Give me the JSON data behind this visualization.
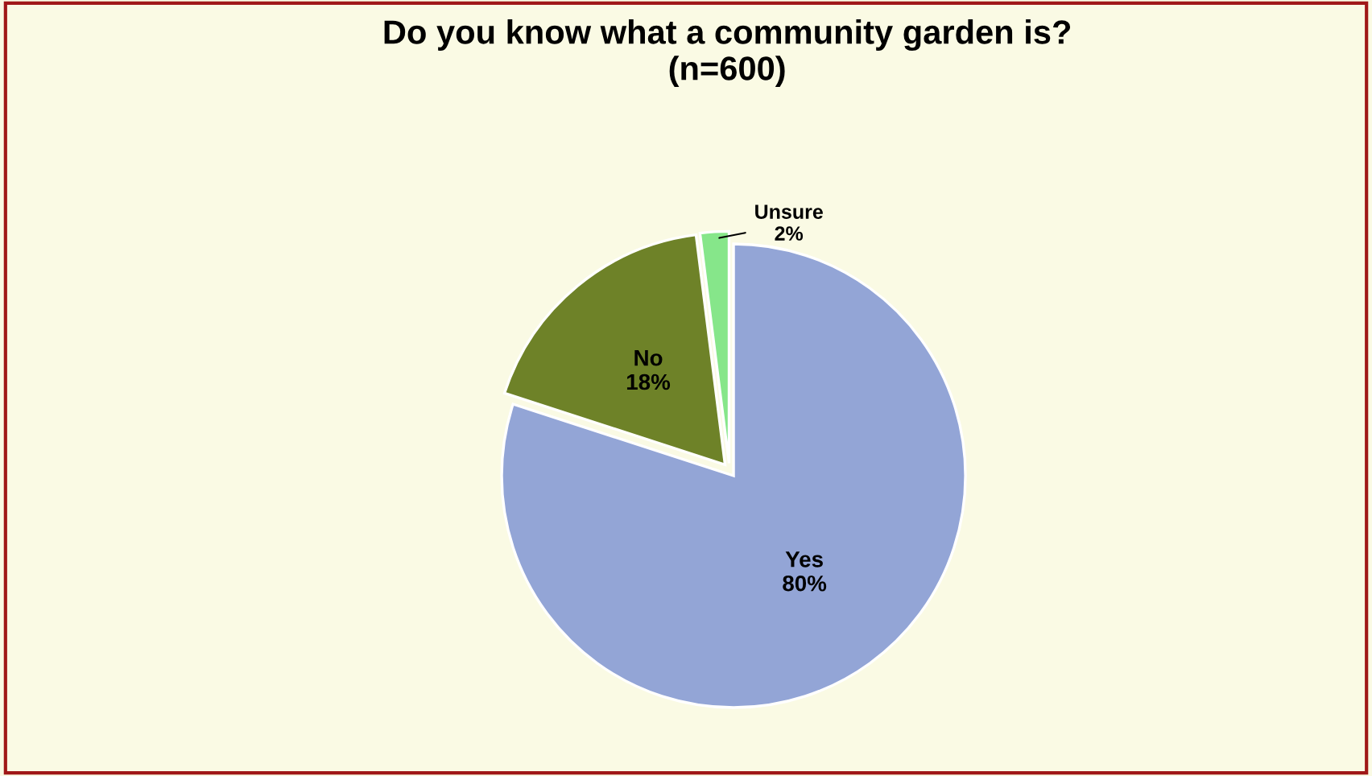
{
  "chart_data": {
    "type": "pie",
    "title": "Do you know what a community garden is?\n(n=600)",
    "categories": [
      "Yes",
      "No",
      "Unsure"
    ],
    "values": [
      80,
      18,
      2
    ],
    "value_labels": [
      "80%",
      "18%",
      "2%"
    ],
    "colors": [
      "#93a5d6",
      "#6e8228",
      "#86e68a"
    ],
    "legend": false
  }
}
